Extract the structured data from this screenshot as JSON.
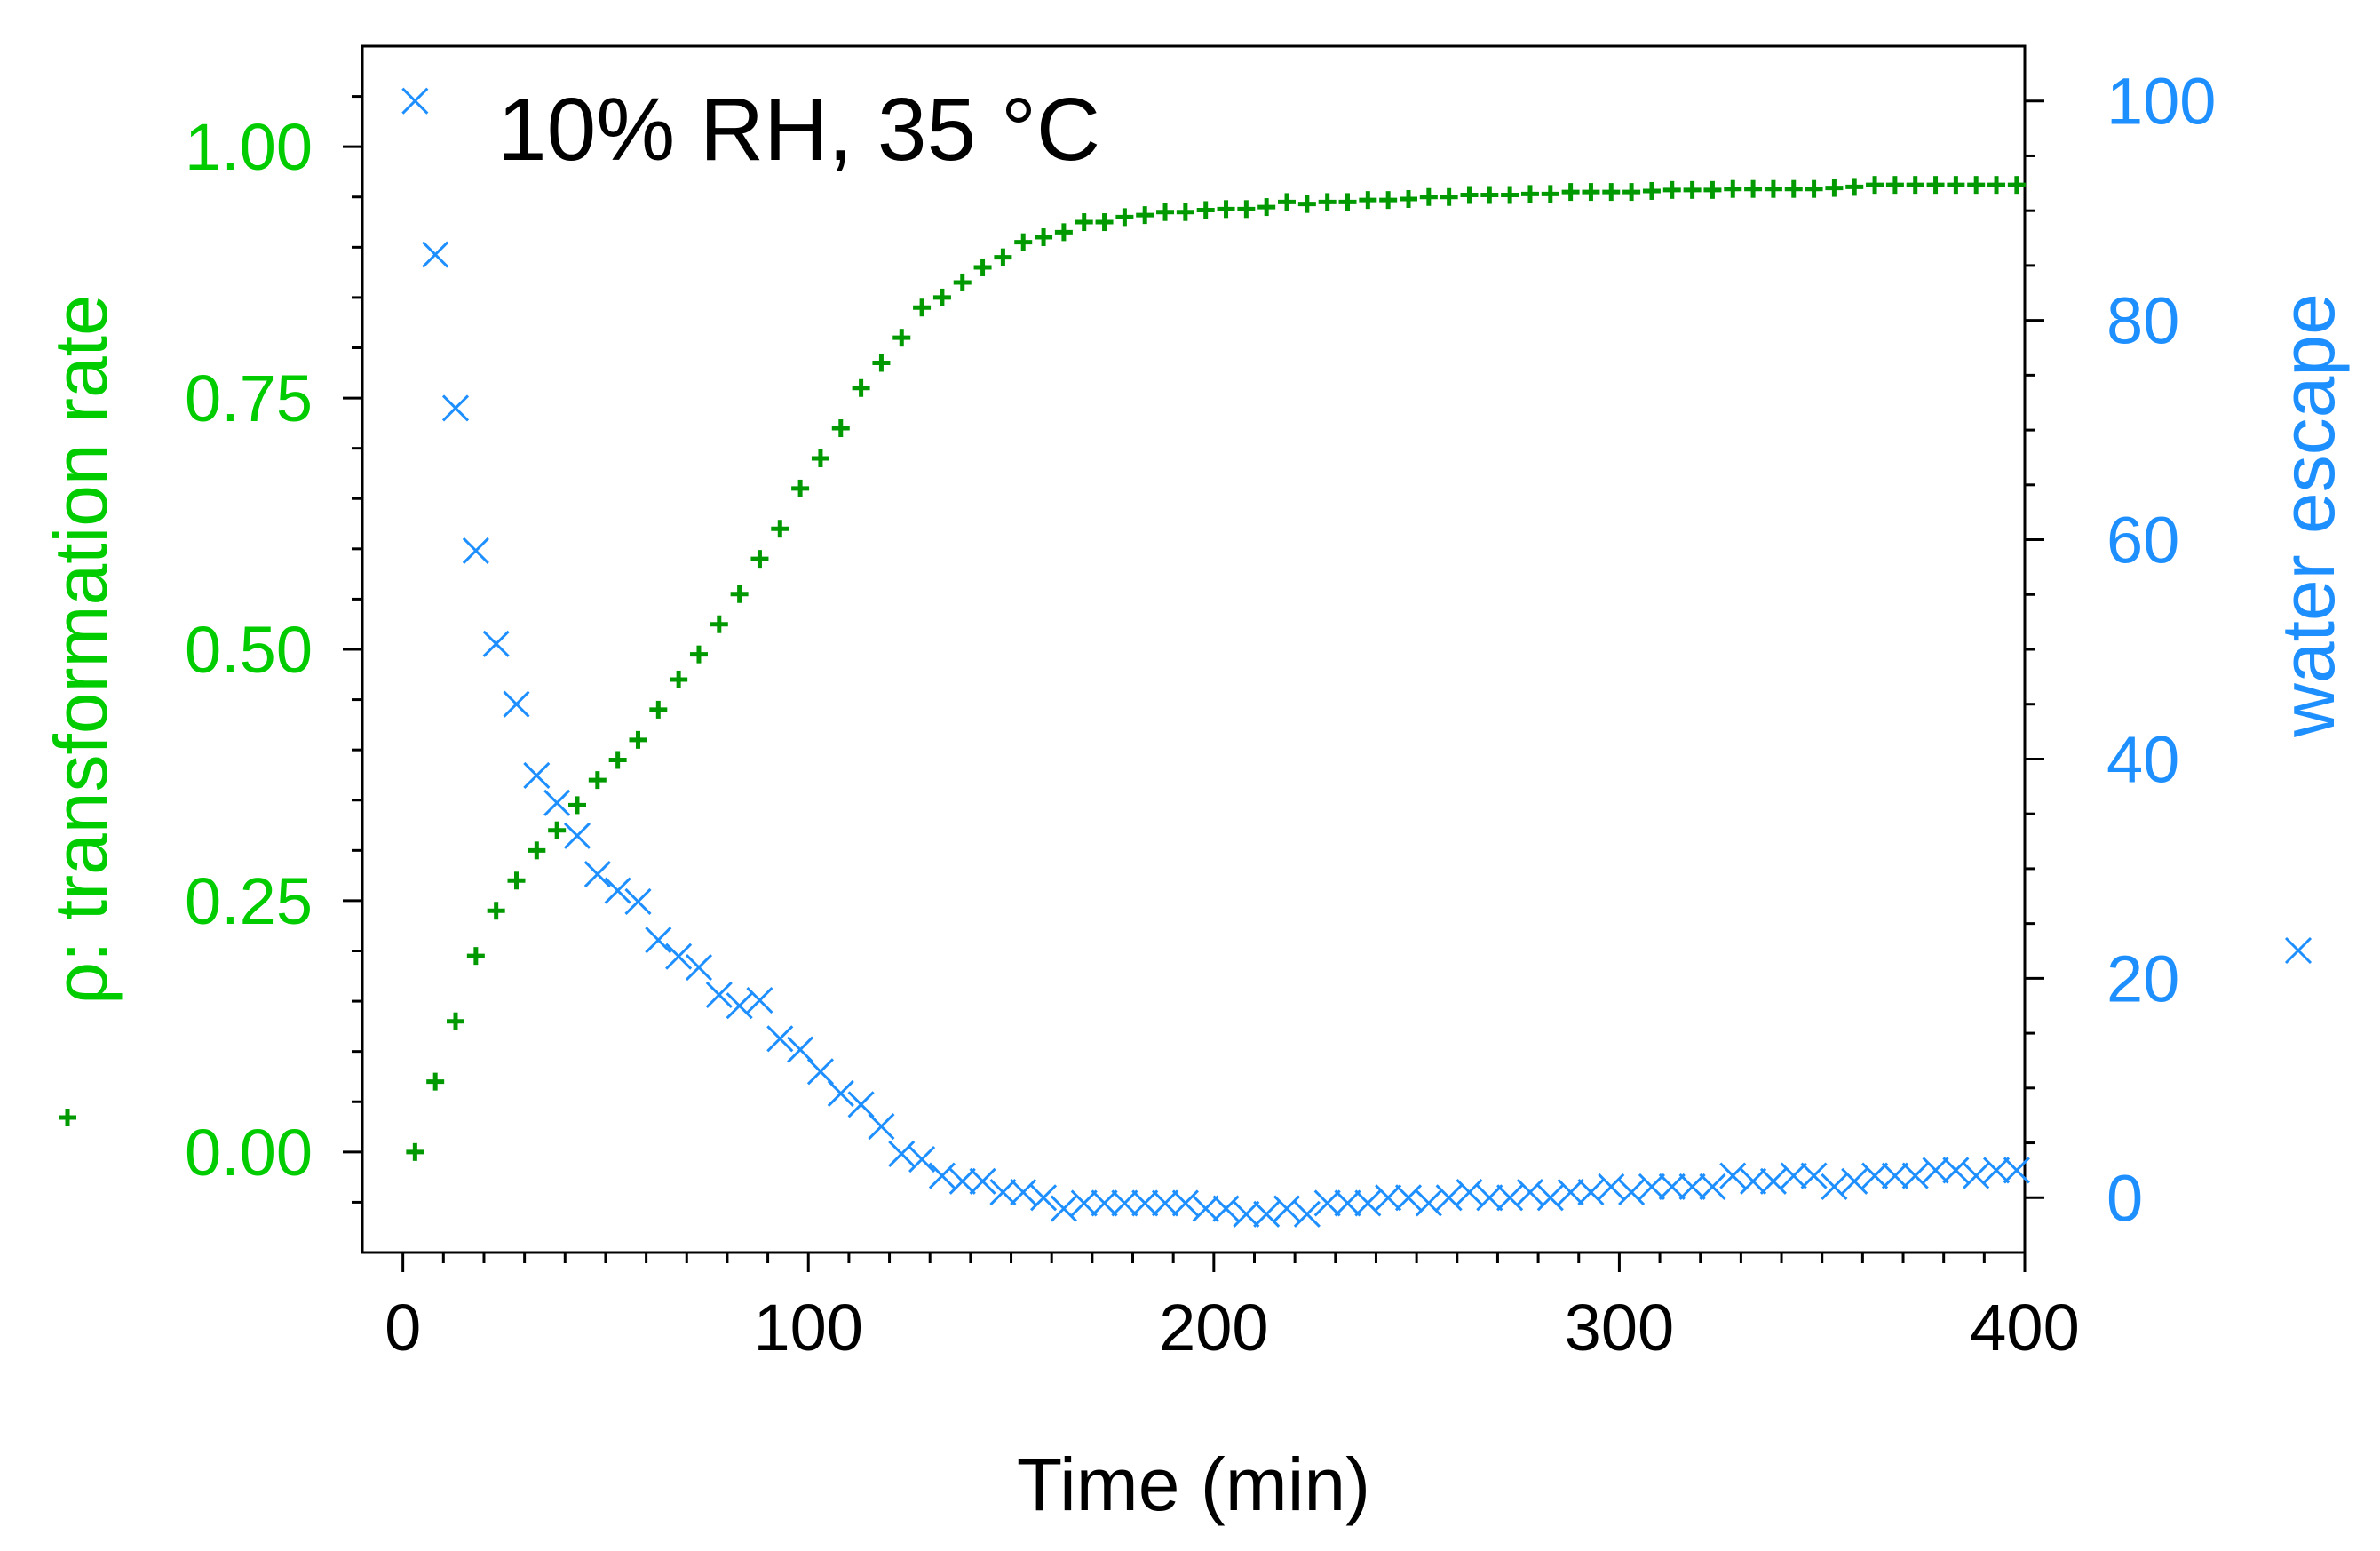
{
  "chart_data": {
    "type": "scatter",
    "annotation": "10% RH, 35 °C",
    "xlabel": "Time (min)",
    "y_left_label": "ρ: transformation rate",
    "y_right_label": "water escape",
    "xlim": [
      -10,
      400
    ],
    "y_left_lim": [
      -0.1,
      1.1
    ],
    "y_right_lim": [
      -5,
      105
    ],
    "x_ticks": [
      0,
      100,
      200,
      300,
      400
    ],
    "x_tick_labels": [
      "0",
      "100",
      "200",
      "300",
      "400"
    ],
    "y_left_ticks": [
      0,
      0.25,
      0.5,
      0.75,
      1.0
    ],
    "y_left_tick_labels": [
      "0.00",
      "0.25",
      "0.50",
      "0.75",
      "1.00"
    ],
    "y_right_ticks": [
      0,
      20,
      40,
      60,
      80,
      100
    ],
    "y_right_tick_labels": [
      "0",
      "20",
      "40",
      "60",
      "80",
      "100"
    ],
    "colors": {
      "rho": "#00cc00",
      "rho_marker": "#009900",
      "water": "#1e8fff",
      "axis": "#000000"
    },
    "series": [
      {
        "name": "ρ: transformation rate",
        "axis": "left",
        "marker": "plus",
        "x": [
          3,
          8,
          13,
          18,
          23,
          28,
          33,
          38,
          43,
          48,
          53,
          58,
          63,
          68,
          73,
          78,
          83,
          88,
          93,
          98,
          103,
          108,
          113,
          118,
          123,
          128,
          133,
          138,
          143,
          148,
          153,
          158,
          163,
          168,
          173,
          178,
          183,
          188,
          193,
          198,
          203,
          208,
          213,
          218,
          223,
          228,
          233,
          238,
          243,
          248,
          253,
          258,
          263,
          268,
          273,
          278,
          283,
          288,
          293,
          298,
          303,
          308,
          313,
          318,
          323,
          328,
          333,
          338,
          343,
          348,
          353,
          358,
          363,
          368,
          373,
          378,
          383,
          388,
          393,
          398
        ],
        "values": [
          0.0,
          0.07,
          0.13,
          0.195,
          0.24,
          0.27,
          0.3,
          0.32,
          0.345,
          0.37,
          0.39,
          0.41,
          0.44,
          0.47,
          0.495,
          0.525,
          0.555,
          0.59,
          0.62,
          0.66,
          0.69,
          0.72,
          0.76,
          0.785,
          0.81,
          0.84,
          0.85,
          0.865,
          0.88,
          0.89,
          0.905,
          0.91,
          0.915,
          0.925,
          0.925,
          0.93,
          0.932,
          0.935,
          0.935,
          0.937,
          0.938,
          0.938,
          0.94,
          0.945,
          0.943,
          0.945,
          0.945,
          0.947,
          0.947,
          0.948,
          0.95,
          0.95,
          0.952,
          0.952,
          0.952,
          0.953,
          0.953,
          0.955,
          0.955,
          0.955,
          0.955,
          0.956,
          0.957,
          0.957,
          0.957,
          0.958,
          0.958,
          0.958,
          0.958,
          0.958,
          0.959,
          0.96,
          0.962,
          0.962,
          0.962,
          0.962,
          0.962,
          0.962,
          0.962,
          0.962
        ]
      },
      {
        "name": "water escape",
        "axis": "right",
        "marker": "x",
        "x": [
          3,
          8,
          13,
          18,
          23,
          28,
          33,
          38,
          43,
          48,
          53,
          58,
          63,
          68,
          73,
          78,
          83,
          88,
          93,
          98,
          103,
          108,
          113,
          118,
          123,
          128,
          133,
          138,
          143,
          148,
          153,
          158,
          163,
          168,
          173,
          178,
          183,
          188,
          193,
          198,
          203,
          208,
          213,
          218,
          223,
          228,
          233,
          238,
          243,
          248,
          253,
          258,
          263,
          268,
          273,
          278,
          283,
          288,
          293,
          298,
          303,
          308,
          313,
          318,
          323,
          328,
          333,
          338,
          343,
          348,
          353,
          358,
          363,
          368,
          373,
          378,
          383,
          388,
          393,
          398
        ],
        "values": [
          100,
          86,
          72,
          59,
          50.5,
          45,
          38.5,
          36,
          33,
          29.5,
          28,
          27,
          23.5,
          22,
          21,
          18.5,
          17.5,
          18,
          14.5,
          13.5,
          11.5,
          9.5,
          8.5,
          6.5,
          4,
          3.5,
          2,
          1.5,
          1.5,
          0.5,
          0.5,
          0,
          -1,
          -0.5,
          -0.5,
          -0.5,
          -0.5,
          -0.5,
          -0.5,
          -1,
          -1,
          -1.5,
          -1.5,
          -1,
          -1.5,
          -0.5,
          -0.5,
          -0.5,
          0,
          0,
          -0.5,
          0,
          0.5,
          0,
          0,
          0.5,
          0,
          0.5,
          0.5,
          1,
          0.5,
          1,
          1,
          1,
          1,
          2,
          1.5,
          1.5,
          2,
          2,
          1,
          1.5,
          2,
          2,
          2,
          2.5,
          2.5,
          2,
          2.5,
          2.5
        ]
      }
    ]
  }
}
